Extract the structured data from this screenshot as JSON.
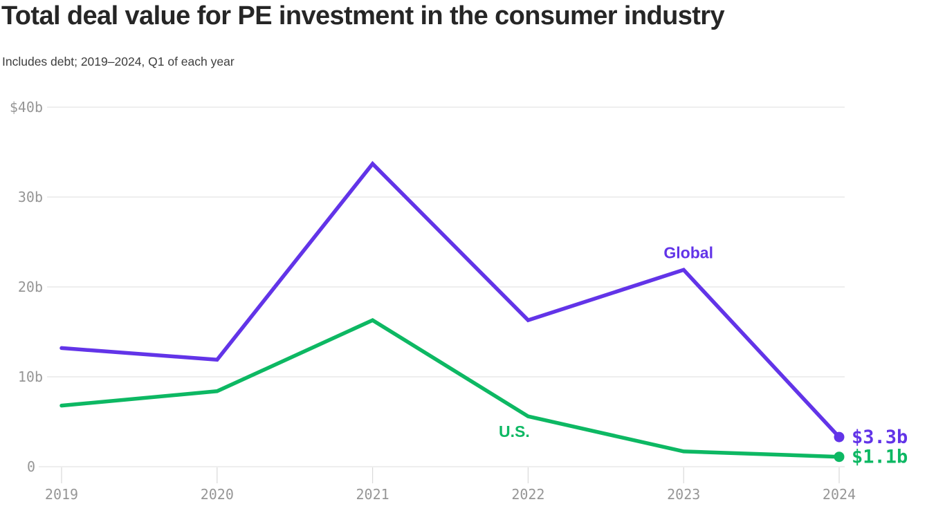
{
  "chart_data": {
    "type": "line",
    "title": "Total deal value for PE investment in the consumer industry",
    "subtitle": "Includes debt; 2019–2024, Q1 of each year",
    "x": [
      2019,
      2020,
      2021,
      2022,
      2023,
      2024
    ],
    "x_tick_labels": [
      "2019",
      "2020",
      "2021",
      "2022",
      "2023",
      "2024"
    ],
    "y_ticks": [
      {
        "label": "$40b",
        "value": 40
      },
      {
        "label": "30b",
        "value": 30
      },
      {
        "label": "20b",
        "value": 20
      },
      {
        "label": "10b",
        "value": 10
      },
      {
        "label": "0",
        "value": 0
      }
    ],
    "ylim": [
      0,
      40
    ],
    "units": "billions of US dollars",
    "grid": "horizontal",
    "legend_position": "inline-labels-on-lines",
    "series": [
      {
        "name": "Global",
        "color": "#6234e8",
        "values": [
          13.2,
          11.9,
          33.7,
          16.3,
          21.9,
          3.3
        ],
        "end_label": "$3.3b"
      },
      {
        "name": "U.S.",
        "color": "#0db863",
        "values": [
          6.8,
          8.4,
          16.3,
          5.6,
          1.7,
          1.1
        ],
        "end_label": "$1.1b"
      }
    ]
  },
  "style_colors": {
    "title_text": "#262626",
    "subtitle_text": "#3e3e3e",
    "axis_text": "#969696",
    "gridline": "#e4e4e4",
    "tick_mark": "#d9d9d9",
    "background": "#ffffff"
  }
}
